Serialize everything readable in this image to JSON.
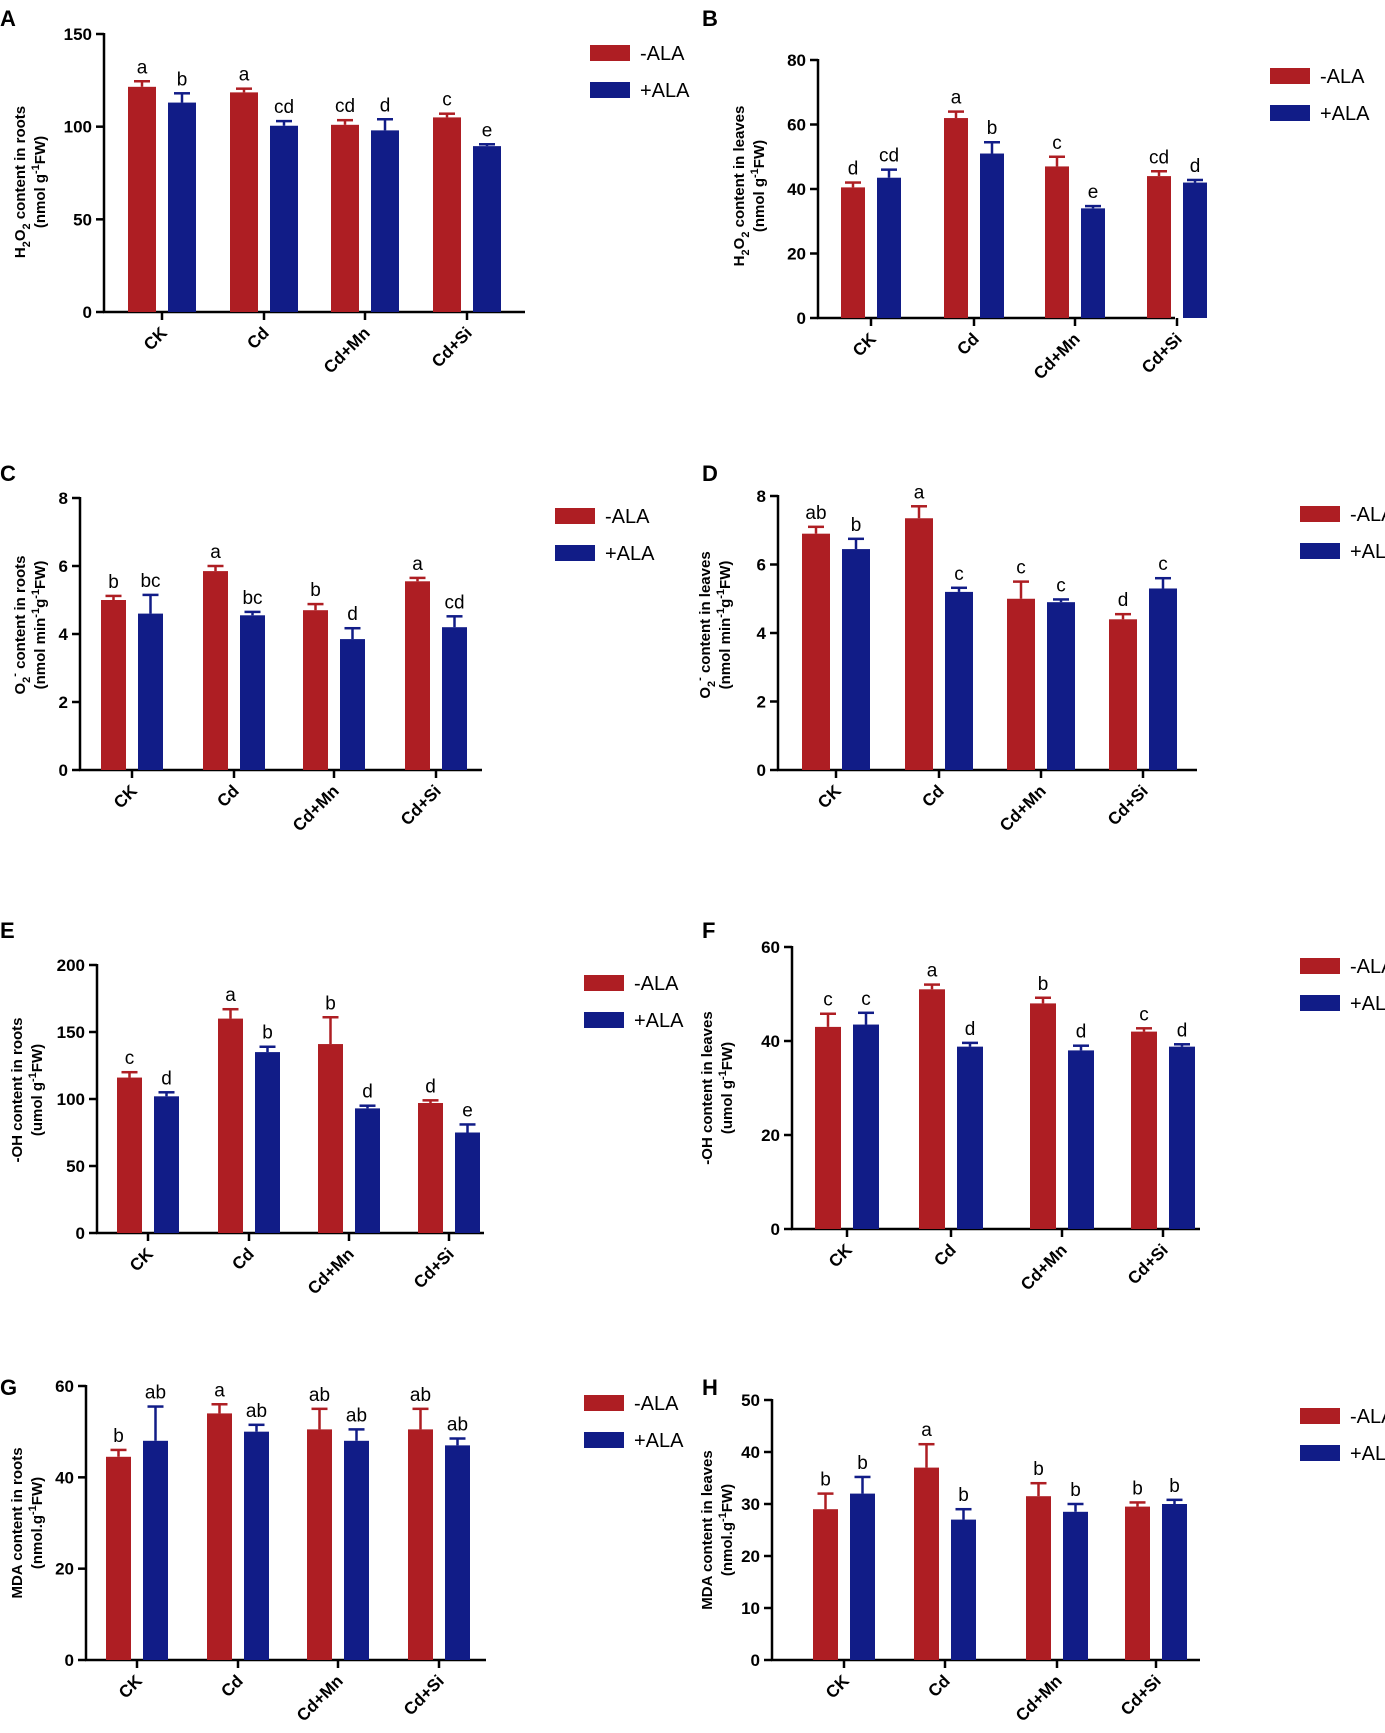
{
  "figure_name": "multi-panel-bar-figure",
  "colors": {
    "minus_ala": "#AE1E23",
    "plus_ala": "#111C87"
  },
  "chart_data": [
    {
      "panel": "A",
      "type": "bar",
      "ylabel": [
        "H",
        "2",
        "O",
        "2",
        " content in roots"
      ],
      "yunit": [
        "(nmol g",
        "-1",
        "FW)"
      ],
      "ylim": [
        0,
        150
      ],
      "yticks": [
        "0",
        "50",
        "100",
        "150"
      ],
      "ytick_values": [
        0,
        50,
        100,
        150
      ],
      "categories": [
        "CK",
        "Cd",
        "Cd+Mn",
        "Cd+Si"
      ],
      "series": [
        {
          "name": "-ALA",
          "values": [
            121.5,
            118.5,
            101,
            105
          ],
          "errors": [
            3,
            2,
            2.5,
            2
          ],
          "letters": [
            "a",
            "a",
            "cd",
            "c"
          ]
        },
        {
          "name": "+ALA",
          "values": [
            113,
            100.5,
            98,
            89.5
          ],
          "errors": [
            5,
            2.5,
            6,
            1
          ],
          "letters": [
            "b",
            "cd",
            "d",
            "e"
          ]
        }
      ],
      "legend": [
        "-ALA",
        "+ALA"
      ]
    },
    {
      "panel": "B",
      "type": "bar",
      "ylabel": [
        "H",
        "2",
        "O",
        "2",
        " content in leaves"
      ],
      "yunit": [
        "(nmol g",
        "-1",
        "FW)"
      ],
      "ylim": [
        0,
        80
      ],
      "yticks": [
        "0",
        "20",
        "40",
        "60",
        "80"
      ],
      "ytick_values": [
        0,
        20,
        40,
        60,
        80
      ],
      "categories": [
        "CK",
        "Cd",
        "Cd+Mn",
        "Cd+Si"
      ],
      "series": [
        {
          "name": "-ALA",
          "values": [
            40.5,
            62,
            47,
            44
          ],
          "errors": [
            1.5,
            2,
            3,
            1.5
          ],
          "letters": [
            "d",
            "a",
            "c",
            "cd"
          ]
        },
        {
          "name": "+ALA",
          "values": [
            43.5,
            51,
            34,
            42
          ],
          "errors": [
            2.5,
            3.5,
            0.7,
            0.8
          ],
          "letters": [
            "cd",
            "b",
            "e",
            "d"
          ]
        }
      ],
      "legend": [
        "-ALA",
        "+ALA"
      ]
    },
    {
      "panel": "C",
      "type": "bar",
      "ylabel": [
        "O",
        "2",
        "-",
        " content in roots"
      ],
      "yunit": [
        "(nmol min",
        "-1",
        "g",
        "-1",
        "FW)"
      ],
      "ylim": [
        0,
        8
      ],
      "yticks": [
        "0",
        "2",
        "4",
        "6",
        "8"
      ],
      "ytick_values": [
        0,
        2,
        4,
        6,
        8
      ],
      "categories": [
        "CK",
        "Cd",
        "Cd+Mn",
        "Cd+Si"
      ],
      "series": [
        {
          "name": "-ALA",
          "values": [
            5.0,
            5.85,
            4.7,
            5.55
          ],
          "errors": [
            0.12,
            0.15,
            0.18,
            0.1
          ],
          "letters": [
            "b",
            "a",
            "b",
            "a"
          ]
        },
        {
          "name": "+ALA",
          "values": [
            4.6,
            4.55,
            3.85,
            4.2
          ],
          "errors": [
            0.55,
            0.1,
            0.32,
            0.32
          ],
          "letters": [
            "bc",
            "bc",
            "d",
            "cd"
          ]
        }
      ],
      "legend": [
        "-ALA",
        "+ALA"
      ]
    },
    {
      "panel": "D",
      "type": "bar",
      "ylabel": [
        "O",
        "2",
        "-",
        " content in leaves"
      ],
      "yunit": [
        "(nmol min",
        "-1",
        "g",
        "-1",
        "FW)"
      ],
      "ylim": [
        0,
        8
      ],
      "yticks": [
        "0",
        "2",
        "4",
        "6",
        "8"
      ],
      "ytick_values": [
        0,
        2,
        4,
        6,
        8
      ],
      "categories": [
        "CK",
        "Cd",
        "Cd+Mn",
        "Cd+Si"
      ],
      "series": [
        {
          "name": "-ALA",
          "values": [
            6.9,
            7.35,
            5.0,
            4.4
          ],
          "errors": [
            0.2,
            0.35,
            0.5,
            0.15
          ],
          "letters": [
            "ab",
            "a",
            "c",
            "d"
          ]
        },
        {
          "name": "+ALA",
          "values": [
            6.45,
            5.2,
            4.9,
            5.3
          ],
          "errors": [
            0.3,
            0.12,
            0.08,
            0.3
          ],
          "letters": [
            "b",
            "c",
            "c",
            "c"
          ]
        }
      ],
      "legend": [
        "-ALA",
        "+ALA"
      ]
    },
    {
      "panel": "E",
      "type": "bar",
      "ylabel": [
        "-OH content in roots"
      ],
      "yunit": [
        "(umol g",
        "-1",
        "FW)"
      ],
      "ylim": [
        0,
        200
      ],
      "yticks": [
        "0",
        "50",
        "100",
        "150",
        "200"
      ],
      "ytick_values": [
        0,
        50,
        100,
        150,
        200
      ],
      "categories": [
        "CK",
        "Cd",
        "Cd+Mn",
        "Cd+Si"
      ],
      "series": [
        {
          "name": "-ALA",
          "values": [
            116,
            160,
            141,
            97
          ],
          "errors": [
            4,
            7,
            20,
            2
          ],
          "letters": [
            "c",
            "a",
            "b",
            "d"
          ]
        },
        {
          "name": "+ALA",
          "values": [
            102,
            135,
            93,
            75
          ],
          "errors": [
            3,
            4,
            2,
            6
          ],
          "letters": [
            "d",
            "b",
            "d",
            "e"
          ]
        }
      ],
      "legend": [
        "-ALA",
        "+ALA"
      ]
    },
    {
      "panel": "F",
      "type": "bar",
      "ylabel": [
        "-OH content in leaves"
      ],
      "yunit": [
        "(umol g",
        "-1",
        "FW)"
      ],
      "ylim": [
        0,
        60
      ],
      "yticks": [
        "0",
        "20",
        "40",
        "60"
      ],
      "ytick_values": [
        0,
        20,
        40,
        60
      ],
      "categories": [
        "CK",
        "Cd",
        "Cd+Mn",
        "Cd+Si"
      ],
      "series": [
        {
          "name": "-ALA",
          "values": [
            43,
            51,
            48,
            42
          ],
          "errors": [
            2.8,
            1,
            1.2,
            0.7
          ],
          "letters": [
            "c",
            "a",
            "b",
            "c"
          ]
        },
        {
          "name": "+ALA",
          "values": [
            43.5,
            38.8,
            38,
            38.8
          ],
          "errors": [
            2.5,
            0.8,
            1,
            0.5
          ],
          "letters": [
            "c",
            "d",
            "d",
            "d"
          ]
        }
      ],
      "legend": [
        "-ALA",
        "+ALA"
      ]
    },
    {
      "panel": "G",
      "type": "bar",
      "ylabel": [
        "MDA content in roots"
      ],
      "yunit": [
        "(nmol.g",
        "-1",
        "FW)"
      ],
      "ylim": [
        0,
        60
      ],
      "yticks": [
        "0",
        "20",
        "40",
        "60"
      ],
      "ytick_values": [
        0,
        20,
        40,
        60
      ],
      "categories": [
        "CK",
        "Cd",
        "Cd+Mn",
        "Cd+Si"
      ],
      "series": [
        {
          "name": "-ALA",
          "values": [
            44.5,
            54,
            50.5,
            50.5
          ],
          "errors": [
            1.5,
            2,
            4.5,
            4.5
          ],
          "letters": [
            "b",
            "a",
            "ab",
            "ab"
          ]
        },
        {
          "name": "+ALA",
          "values": [
            48,
            50,
            48,
            47
          ],
          "errors": [
            7.5,
            1.5,
            2.5,
            1.5
          ],
          "letters": [
            "ab",
            "ab",
            "ab",
            "ab"
          ]
        }
      ],
      "legend": [
        "-ALA",
        "+ALA"
      ]
    },
    {
      "panel": "H",
      "type": "bar",
      "ylabel": [
        "MDA content in leaves"
      ],
      "yunit": [
        "(nmol.g",
        "-1",
        "FW)"
      ],
      "ylim": [
        0,
        50
      ],
      "yticks": [
        "0",
        "10",
        "20",
        "30",
        "40",
        "50"
      ],
      "ytick_values": [
        0,
        10,
        20,
        30,
        40,
        50
      ],
      "categories": [
        "CK",
        "Cd",
        "Cd+Mn",
        "Cd+Si"
      ],
      "series": [
        {
          "name": "-ALA",
          "values": [
            29,
            37,
            31.5,
            29.5
          ],
          "errors": [
            3,
            4.5,
            2.5,
            0.8
          ],
          "letters": [
            "b",
            "a",
            "b",
            "b"
          ]
        },
        {
          "name": "+ALA",
          "values": [
            32,
            27,
            28.5,
            30
          ],
          "errors": [
            3.2,
            2,
            1.5,
            0.8
          ],
          "letters": [
            "b",
            "b",
            "b",
            "b"
          ]
        }
      ],
      "legend": [
        "-ALA",
        "+ALA"
      ]
    }
  ]
}
